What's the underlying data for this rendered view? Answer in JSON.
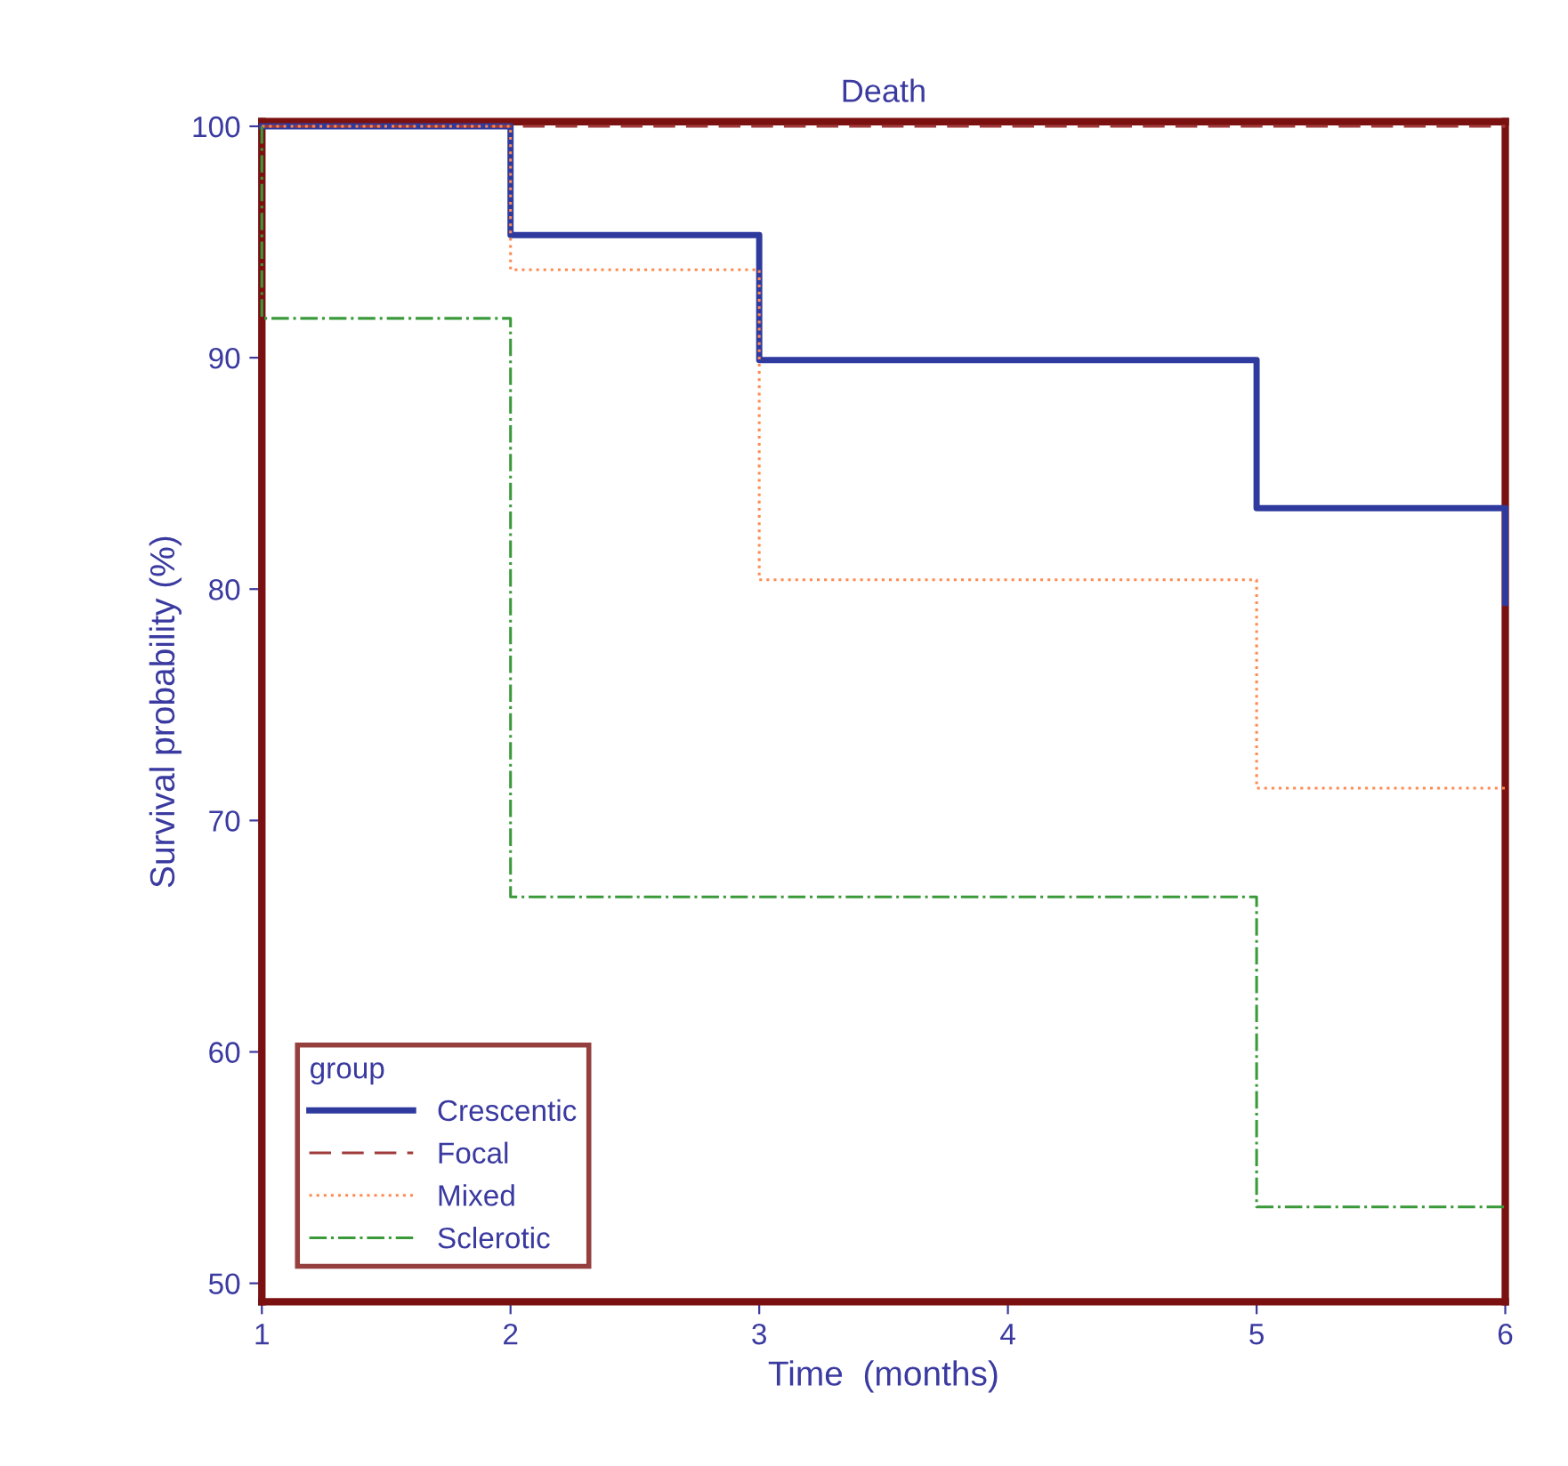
{
  "chart_data": {
    "type": "step",
    "title": "Death",
    "xlabel": "Time  (months)",
    "ylabel": "Survival probability (%)",
    "legend_title": "group",
    "legend": "bottom left",
    "grid": false,
    "xlim": [
      1,
      6
    ],
    "xticks": [
      1,
      2,
      3,
      4,
      5,
      6
    ],
    "ylim": [
      49.2,
      100.2
    ],
    "yticks": [
      50,
      60,
      70,
      80,
      90,
      100
    ],
    "series": [
      {
        "name": "Crescentic",
        "color": "#2e3a9e",
        "line_style": "solid",
        "x": [
          1,
          2,
          3,
          5,
          6,
          6
        ],
        "values": [
          100,
          95.3,
          89.9,
          83.5,
          83.5,
          79.4
        ]
      },
      {
        "name": "Focal",
        "color": "#a03a3a",
        "line_style": "dashed",
        "x": [
          1,
          6
        ],
        "values": [
          100,
          100
        ]
      },
      {
        "name": "Mixed",
        "color": "#ff8a50",
        "line_style": "dotted",
        "x": [
          1,
          2,
          3,
          5,
          6
        ],
        "values": [
          100,
          93.8,
          80.4,
          71.4,
          71.4
        ]
      },
      {
        "name": "Sclerotic",
        "color": "#3a9a3a",
        "line_style": "dashdot",
        "x": [
          1,
          1,
          2,
          5,
          6
        ],
        "values": [
          100,
          91.7,
          66.7,
          53.3,
          53.3
        ]
      }
    ]
  }
}
